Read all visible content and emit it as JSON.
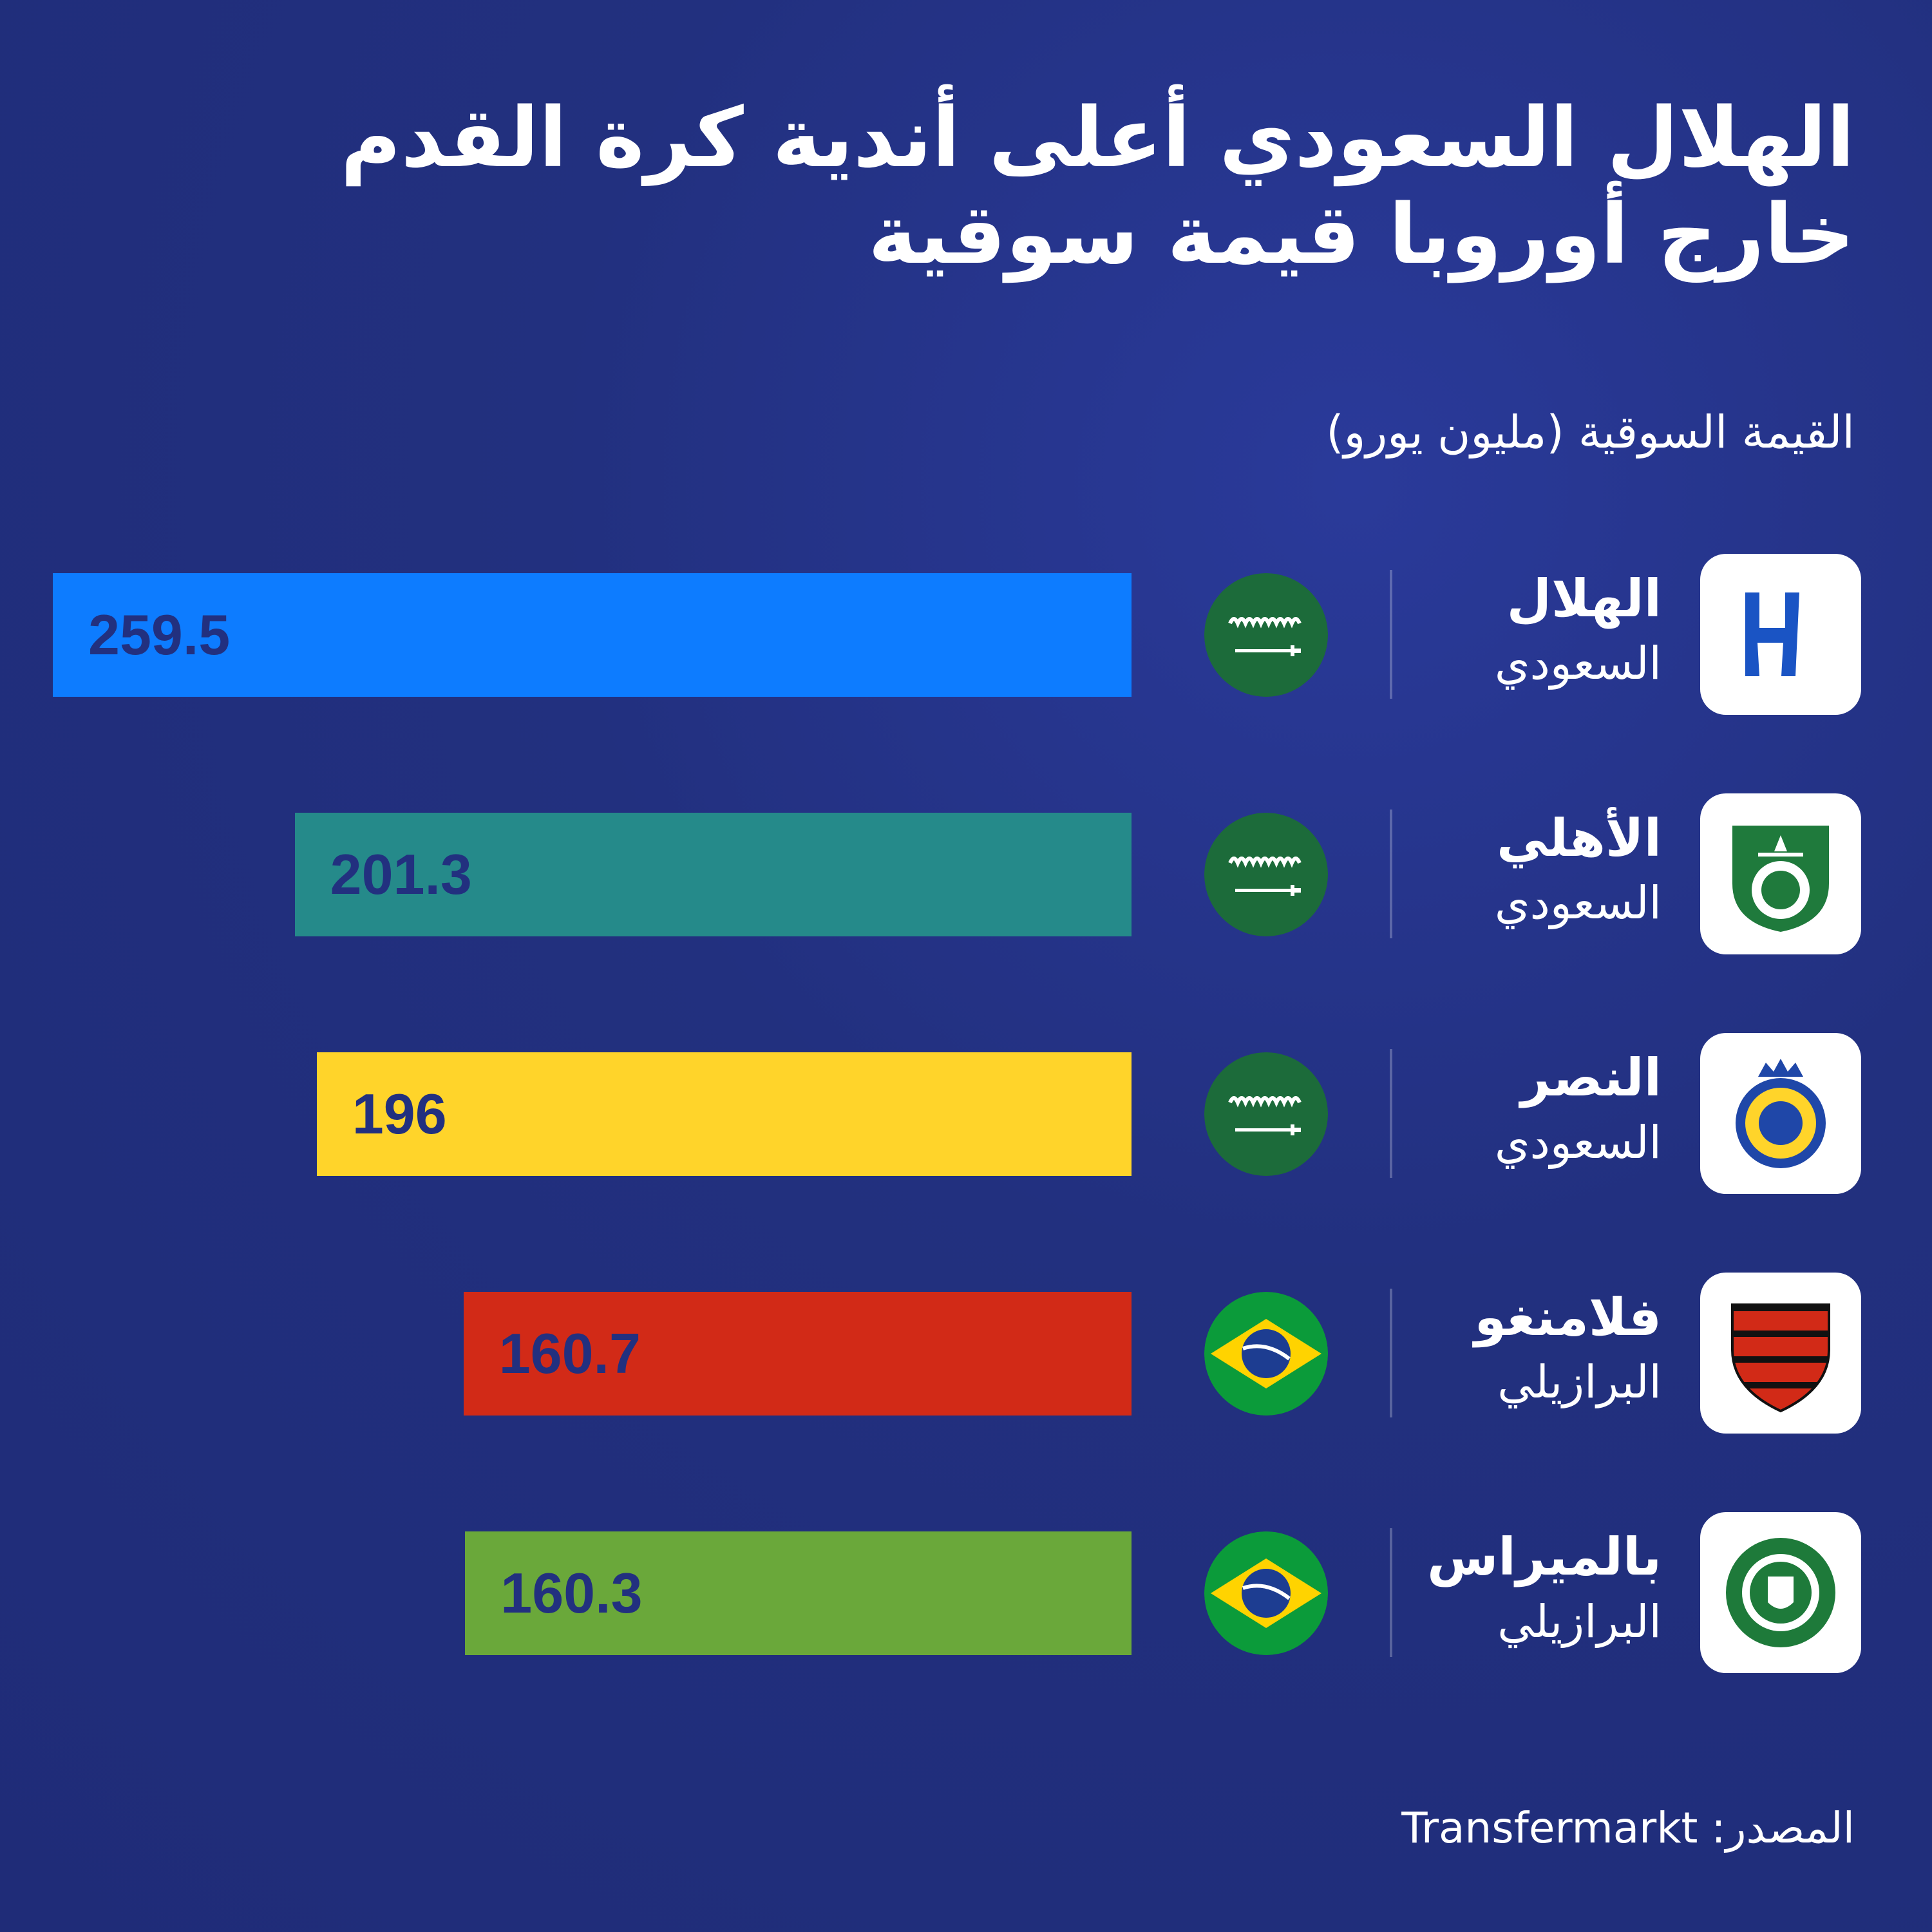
{
  "title": "الهلال السعودي أعلى أندية كرة القدم خارج أوروبا قيمة سوقية",
  "subtitle": "القيمة السوقية (مليون يورو)",
  "source": "المصدر: Transfermarkt",
  "colors": {
    "background": "#22307f",
    "text_on_bar": "#22307f",
    "saudi_green": "#1c6b3a",
    "brazil_green": "#0b9b3a",
    "brazil_yellow": "#ffd300",
    "brazil_blue": "#1d3d91"
  },
  "chart_data": {
    "type": "bar",
    "orientation": "horizontal",
    "categories": [
      "الهلال السعودي",
      "الأهلي السعودي",
      "النصر السعودي",
      "فلامنغو البرازيلي",
      "بالميراس البرازيلي"
    ],
    "values": [
      259.5,
      201.3,
      196,
      160.7,
      160.3
    ],
    "title": "الهلال السعودي أعلى أندية كرة القدم خارج أوروبا قيمة سوقية",
    "xlabel": "",
    "ylabel": "القيمة السوقية (مليون يورو)",
    "xlim": [
      0,
      259.5
    ],
    "grid": false,
    "rows": [
      {
        "name": "الهلال",
        "country": "السعودي",
        "value": "259.5",
        "bar_color": "#0d7cff",
        "flag": "saudi-flag-icon",
        "logo": "al-hilal-logo-icon"
      },
      {
        "name": "الأهلي",
        "country": "السعودي",
        "value": "201.3",
        "bar_color": "#258a8a",
        "flag": "saudi-flag-icon",
        "logo": "al-ahli-logo-icon"
      },
      {
        "name": "النصر",
        "country": "السعودي",
        "value": "196",
        "bar_color": "#ffd42a",
        "flag": "saudi-flag-icon",
        "logo": "al-nassr-logo-icon"
      },
      {
        "name": "فلامنغو",
        "country": "البرازيلي",
        "value": "160.7",
        "bar_color": "#d22a17",
        "flag": "brazil-flag-icon",
        "logo": "flamengo-logo-icon"
      },
      {
        "name": "بالميراس",
        "country": "البرازيلي",
        "value": "160.3",
        "bar_color": "#6aa83a",
        "flag": "brazil-flag-icon",
        "logo": "palmeiras-logo-icon"
      }
    ]
  }
}
